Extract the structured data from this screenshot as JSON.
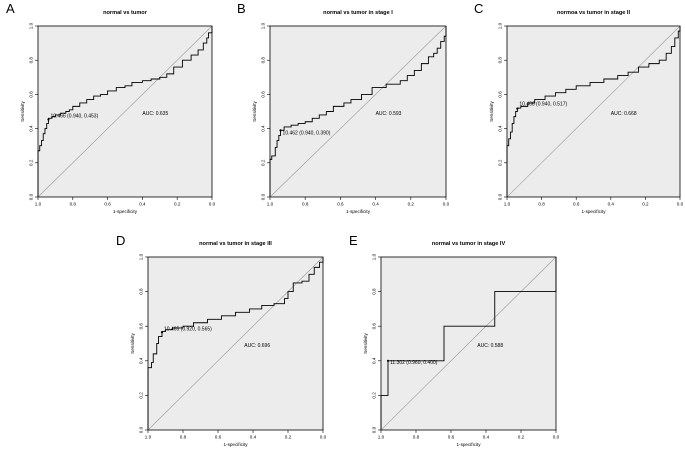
{
  "chart_data": [
    {
      "type": "line",
      "panel": "A",
      "title": "normal vs tumor",
      "xlabel": "1-specificity",
      "ylabel": "Sensitivity",
      "xlim": [
        1.0,
        0.0
      ],
      "ylim": [
        0.0,
        1.0
      ],
      "xticks": [
        "1.0",
        "0.8",
        "0.6",
        "0.4",
        "0.2",
        "0.0"
      ],
      "yticks": [
        "0.0",
        "0.2",
        "0.4",
        "0.6",
        "0.8",
        "1.0"
      ],
      "auc_label": "AUC: 0.635",
      "threshold_label": "10.466 (0.940, 0.453)",
      "threshold_point": [
        0.94,
        0.453
      ],
      "grid": false,
      "series": [
        {
          "x": [
            1.0,
            1.0,
            0.99,
            0.99,
            0.98,
            0.98,
            0.97,
            0.97,
            0.96,
            0.96,
            0.95,
            0.95,
            0.94,
            0.94,
            0.92,
            0.92,
            0.9,
            0.9,
            0.87,
            0.87,
            0.84,
            0.84,
            0.82,
            0.82,
            0.8,
            0.8,
            0.76,
            0.76,
            0.72,
            0.72,
            0.68,
            0.68,
            0.64,
            0.64,
            0.6,
            0.6,
            0.55,
            0.55,
            0.5,
            0.5,
            0.46,
            0.46,
            0.4,
            0.4,
            0.35,
            0.35,
            0.3,
            0.3,
            0.26,
            0.26,
            0.22,
            0.22,
            0.17,
            0.17,
            0.12,
            0.12,
            0.08,
            0.08,
            0.05,
            0.05,
            0.03,
            0.03,
            0.02,
            0.02,
            0.0,
            0.0
          ],
          "y": [
            0.0,
            0.27,
            0.27,
            0.3,
            0.3,
            0.33,
            0.33,
            0.37,
            0.37,
            0.4,
            0.4,
            0.43,
            0.43,
            0.46,
            0.46,
            0.47,
            0.47,
            0.48,
            0.48,
            0.49,
            0.49,
            0.5,
            0.5,
            0.51,
            0.51,
            0.53,
            0.53,
            0.55,
            0.55,
            0.57,
            0.57,
            0.59,
            0.59,
            0.6,
            0.6,
            0.62,
            0.62,
            0.64,
            0.64,
            0.65,
            0.65,
            0.67,
            0.67,
            0.68,
            0.68,
            0.69,
            0.69,
            0.7,
            0.7,
            0.72,
            0.72,
            0.76,
            0.76,
            0.8,
            0.8,
            0.83,
            0.83,
            0.86,
            0.86,
            0.9,
            0.9,
            0.93,
            0.93,
            0.96,
            0.96,
            1.0
          ]
        }
      ]
    },
    {
      "type": "line",
      "panel": "B",
      "title": "normal vs tumor in stage I",
      "xlabel": "1-specificity",
      "ylabel": "Sensitivity",
      "xlim": [
        1.0,
        0.0
      ],
      "ylim": [
        0.0,
        1.0
      ],
      "xticks": [
        "1.0",
        "0.8",
        "0.6",
        "0.4",
        "0.2",
        "0.0"
      ],
      "yticks": [
        "0.0",
        "0.2",
        "0.4",
        "0.6",
        "0.8",
        "1.0"
      ],
      "auc_label": "AUC: 0.593",
      "threshold_label": "10.462 (0.940, 0.390)",
      "threshold_point": [
        0.94,
        0.39
      ],
      "grid": false,
      "series": [
        {
          "x": [
            1.0,
            1.0,
            0.99,
            0.99,
            0.97,
            0.97,
            0.96,
            0.96,
            0.95,
            0.95,
            0.94,
            0.94,
            0.92,
            0.92,
            0.88,
            0.88,
            0.84,
            0.84,
            0.8,
            0.8,
            0.76,
            0.76,
            0.72,
            0.72,
            0.68,
            0.68,
            0.64,
            0.64,
            0.58,
            0.58,
            0.54,
            0.54,
            0.48,
            0.48,
            0.42,
            0.42,
            0.34,
            0.34,
            0.26,
            0.26,
            0.22,
            0.22,
            0.18,
            0.18,
            0.14,
            0.14,
            0.1,
            0.1,
            0.07,
            0.07,
            0.05,
            0.05,
            0.03,
            0.03,
            0.01,
            0.01,
            0.0,
            0.0
          ],
          "y": [
            0.0,
            0.22,
            0.22,
            0.24,
            0.24,
            0.29,
            0.29,
            0.33,
            0.33,
            0.36,
            0.36,
            0.39,
            0.39,
            0.41,
            0.41,
            0.42,
            0.42,
            0.43,
            0.43,
            0.44,
            0.44,
            0.46,
            0.46,
            0.48,
            0.48,
            0.5,
            0.5,
            0.53,
            0.53,
            0.55,
            0.55,
            0.57,
            0.57,
            0.6,
            0.6,
            0.64,
            0.64,
            0.66,
            0.66,
            0.68,
            0.68,
            0.71,
            0.71,
            0.74,
            0.74,
            0.78,
            0.78,
            0.82,
            0.82,
            0.84,
            0.84,
            0.87,
            0.87,
            0.91,
            0.91,
            0.94,
            0.94,
            1.0
          ]
        }
      ]
    },
    {
      "type": "line",
      "panel": "C",
      "title": "normoa vs tumor in stage II",
      "xlabel": "1-specificity",
      "ylabel": "Sensitivity",
      "xlim": [
        1.0,
        0.0
      ],
      "ylim": [
        0.0,
        1.0
      ],
      "xticks": [
        "1.0",
        "0.8",
        "0.6",
        "0.4",
        "0.2",
        "0.0"
      ],
      "yticks": [
        "0.0",
        "0.2",
        "0.4",
        "0.6",
        "0.8",
        "1.0"
      ],
      "auc_label": "AUC: 0.668",
      "threshold_label": "10.466 (0.940, 0.517)",
      "threshold_point": [
        0.94,
        0.517
      ],
      "grid": false,
      "series": [
        {
          "x": [
            1.0,
            1.0,
            0.99,
            0.99,
            0.98,
            0.98,
            0.97,
            0.97,
            0.96,
            0.96,
            0.95,
            0.95,
            0.94,
            0.94,
            0.92,
            0.92,
            0.88,
            0.88,
            0.84,
            0.84,
            0.78,
            0.78,
            0.72,
            0.72,
            0.66,
            0.66,
            0.6,
            0.6,
            0.52,
            0.52,
            0.44,
            0.44,
            0.36,
            0.36,
            0.3,
            0.3,
            0.24,
            0.24,
            0.18,
            0.18,
            0.12,
            0.12,
            0.08,
            0.08,
            0.05,
            0.05,
            0.03,
            0.03,
            0.01,
            0.01,
            0.0,
            0.0
          ],
          "y": [
            0.0,
            0.3,
            0.3,
            0.34,
            0.34,
            0.38,
            0.38,
            0.43,
            0.43,
            0.47,
            0.47,
            0.5,
            0.5,
            0.52,
            0.52,
            0.53,
            0.53,
            0.55,
            0.55,
            0.57,
            0.57,
            0.59,
            0.59,
            0.61,
            0.61,
            0.63,
            0.63,
            0.65,
            0.65,
            0.67,
            0.67,
            0.69,
            0.69,
            0.71,
            0.71,
            0.73,
            0.73,
            0.76,
            0.76,
            0.78,
            0.78,
            0.8,
            0.8,
            0.84,
            0.84,
            0.88,
            0.88,
            0.93,
            0.93,
            0.97,
            0.97,
            1.0
          ]
        }
      ]
    },
    {
      "type": "line",
      "panel": "D",
      "title": "normal vs tumor in stage III",
      "xlabel": "1-specificity",
      "ylabel": "Sensitivity",
      "xlim": [
        1.0,
        0.0
      ],
      "ylim": [
        0.0,
        1.0
      ],
      "xticks": [
        "1.0",
        "0.8",
        "0.6",
        "0.4",
        "0.2",
        "0.0"
      ],
      "yticks": [
        "0.0",
        "0.2",
        "0.4",
        "0.6",
        "0.8",
        "1.0"
      ],
      "auc_label": "AUC: 0.696",
      "threshold_label": "10.465 (0.920, 0.565)",
      "threshold_point": [
        0.92,
        0.565
      ],
      "grid": false,
      "series": [
        {
          "x": [
            1.0,
            1.0,
            0.98,
            0.98,
            0.97,
            0.97,
            0.95,
            0.95,
            0.94,
            0.94,
            0.92,
            0.92,
            0.9,
            0.9,
            0.86,
            0.86,
            0.8,
            0.8,
            0.74,
            0.74,
            0.66,
            0.66,
            0.58,
            0.58,
            0.5,
            0.5,
            0.42,
            0.42,
            0.35,
            0.35,
            0.28,
            0.28,
            0.22,
            0.22,
            0.2,
            0.2,
            0.17,
            0.17,
            0.12,
            0.12,
            0.08,
            0.08,
            0.05,
            0.05,
            0.02,
            0.02,
            0.0,
            0.0
          ],
          "y": [
            0.0,
            0.36,
            0.36,
            0.39,
            0.39,
            0.44,
            0.44,
            0.5,
            0.5,
            0.54,
            0.54,
            0.57,
            0.57,
            0.58,
            0.58,
            0.59,
            0.59,
            0.6,
            0.6,
            0.62,
            0.62,
            0.64,
            0.64,
            0.66,
            0.66,
            0.68,
            0.68,
            0.7,
            0.7,
            0.72,
            0.72,
            0.73,
            0.73,
            0.76,
            0.76,
            0.8,
            0.8,
            0.85,
            0.85,
            0.86,
            0.86,
            0.9,
            0.9,
            0.94,
            0.94,
            0.97,
            0.97,
            1.0
          ]
        }
      ]
    },
    {
      "type": "line",
      "panel": "E",
      "title": "normal vs tumor in stage IV",
      "xlabel": "1-specificity",
      "ylabel": "Sensitivity",
      "xlim": [
        1.0,
        0.0
      ],
      "ylim": [
        0.0,
        1.0
      ],
      "xticks": [
        "1.0",
        "0.8",
        "0.6",
        "0.4",
        "0.2",
        "0.0"
      ],
      "yticks": [
        "0.0",
        "0.2",
        "0.4",
        "0.6",
        "0.8",
        "1.0"
      ],
      "auc_label": "AUC: 0.588",
      "threshold_label": "11.302 (0.960, 0.400)",
      "threshold_point": [
        0.96,
        0.4
      ],
      "grid": false,
      "series": [
        {
          "x": [
            1.0,
            1.0,
            0.96,
            0.96,
            0.64,
            0.64,
            0.35,
            0.35,
            0.0,
            0.0
          ],
          "y": [
            0.0,
            0.2,
            0.2,
            0.4,
            0.4,
            0.6,
            0.6,
            0.8,
            0.8,
            1.0
          ]
        }
      ]
    }
  ]
}
